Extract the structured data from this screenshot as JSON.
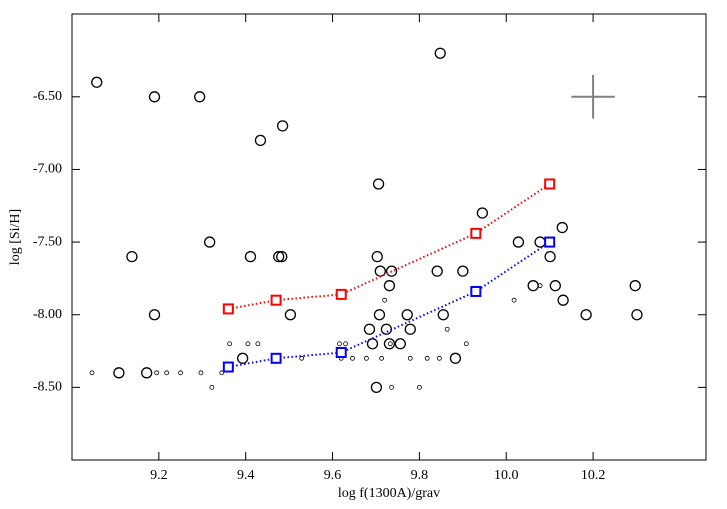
{
  "chart_data": {
    "type": "scatter",
    "x_label": "log f(1300A)/grav",
    "y_label": "log [Si/H]",
    "xlim": [
      9.0,
      10.46
    ],
    "ylim": [
      -9.0,
      -5.93
    ],
    "xticks": [
      9.2,
      9.4,
      9.6,
      9.8,
      {
        "value": 10.0,
        "label": "10.0"
      },
      10.2
    ],
    "yticks": [
      {
        "value": -6.5,
        "label": "-6.50"
      },
      {
        "value": -7.0,
        "label": "-7.00"
      },
      {
        "value": -7.5,
        "label": "-7.50"
      },
      {
        "value": -8.0,
        "label": "-8.00"
      },
      {
        "value": -8.5,
        "label": "-8.50"
      }
    ],
    "series": [
      {
        "marker": "circle",
        "size": 5,
        "color": "#000000",
        "x": [
          9.057,
          9.19,
          9.294,
          9.848,
          9.485,
          9.434,
          9.706,
          9.945,
          9.317,
          9.138,
          9.411,
          9.476,
          9.483,
          9.703,
          10.028,
          10.078,
          10.129,
          9.71,
          9.736,
          9.841,
          9.9,
          9.731,
          10.062,
          10.101,
          10.113,
          10.131,
          10.297,
          9.19,
          9.503,
          9.708,
          9.772,
          9.855,
          10.184,
          10.301,
          9.685,
          9.724,
          9.779,
          9.692,
          9.731,
          9.756,
          9.393,
          9.883,
          9.108,
          9.172,
          9.701
        ],
        "values": [
          -6.4,
          -6.5,
          -6.5,
          -6.2,
          -6.7,
          -6.8,
          -7.1,
          -7.3,
          -7.5,
          -7.6,
          -7.6,
          -7.6,
          -7.6,
          -7.6,
          -7.5,
          -7.5,
          -7.4,
          -7.7,
          -7.7,
          -7.7,
          -7.7,
          -7.8,
          -7.8,
          -7.6,
          -7.8,
          -7.9,
          -7.8,
          -8.0,
          -8.0,
          -8.0,
          -8.0,
          -8.0,
          -8.0,
          -8.0,
          -8.1,
          -8.1,
          -8.1,
          -8.2,
          -8.2,
          -8.2,
          -8.3,
          -8.3,
          -8.4,
          -8.4,
          -8.5
        ]
      },
      {
        "marker": "circle",
        "size": 2,
        "color": "#000000",
        "x": [
          9.046,
          9.195,
          9.218,
          9.25,
          9.297,
          9.345,
          9.322,
          9.363,
          9.405,
          9.428,
          9.529,
          9.616,
          9.63,
          9.62,
          9.646,
          9.678,
          9.72,
          9.733,
          9.713,
          9.779,
          9.736,
          9.8,
          9.818,
          9.846,
          9.864,
          9.908,
          10.018,
          10.078
        ],
        "values": [
          -8.4,
          -8.4,
          -8.4,
          -8.4,
          -8.4,
          -8.4,
          -8.5,
          -8.2,
          -8.2,
          -8.2,
          -8.3,
          -8.2,
          -8.2,
          -8.3,
          -8.3,
          -8.3,
          -7.9,
          -8.2,
          -8.3,
          -8.3,
          -8.5,
          -8.5,
          -8.3,
          -8.3,
          -8.1,
          -8.2,
          -7.9,
          -7.8
        ]
      },
      {
        "marker": "square",
        "size": 4.5,
        "color": "#ff0000",
        "line": "dotted",
        "x": [
          9.36,
          9.47,
          9.62,
          9.93,
          10.1
        ],
        "values": [
          -7.96,
          -7.9,
          -7.86,
          -7.44,
          -7.1
        ]
      },
      {
        "marker": "square",
        "size": 4.5,
        "color": "#0000ff",
        "line": "dotted",
        "x": [
          9.36,
          9.47,
          9.62,
          9.93,
          10.1
        ],
        "values": [
          -8.36,
          -8.3,
          -8.26,
          -7.84,
          -7.5
        ]
      }
    ],
    "error_cross": {
      "x": 10.2,
      "y": -6.5,
      "xerr": 0.05,
      "yerr": 0.15,
      "color": "#808080"
    }
  }
}
